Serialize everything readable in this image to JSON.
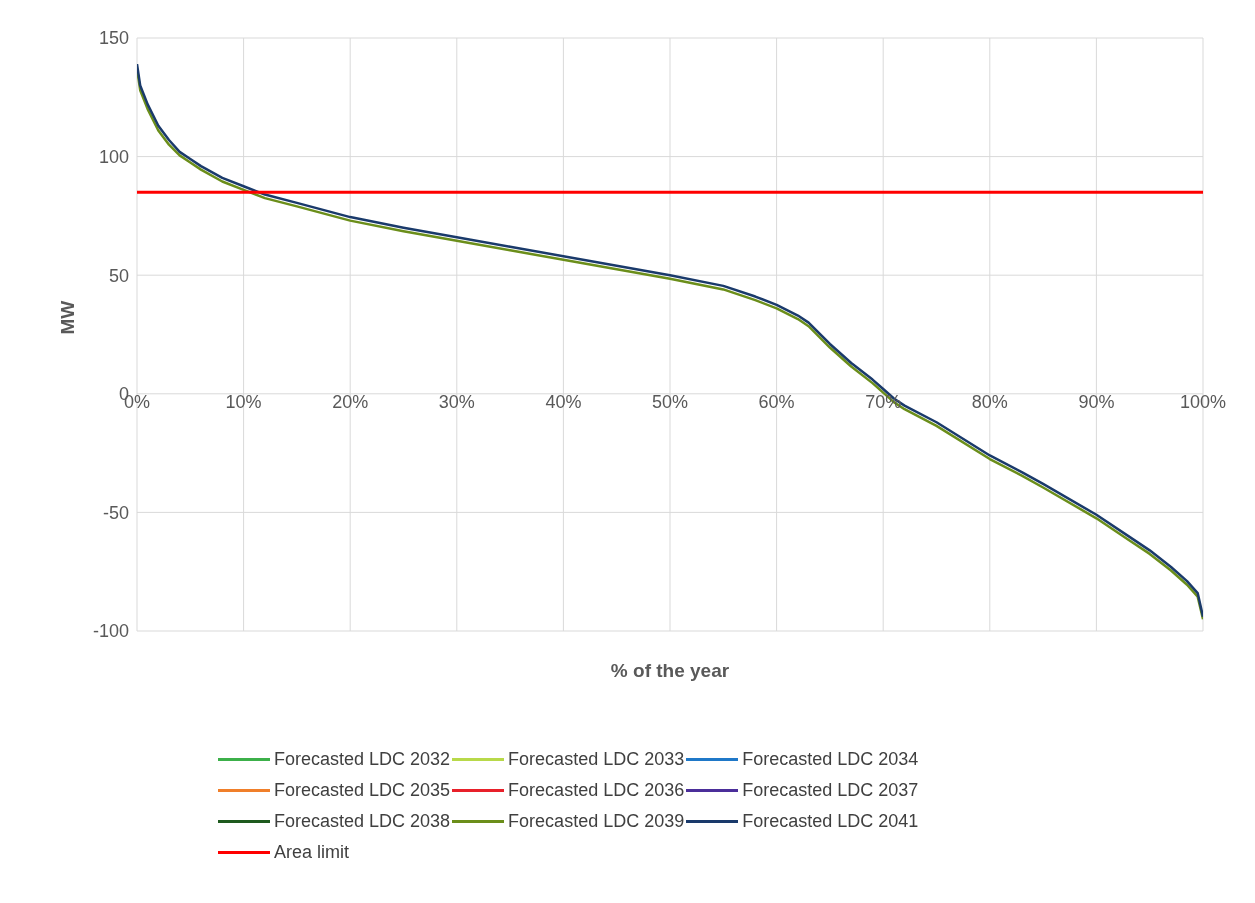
{
  "chart_data": {
    "type": "line",
    "xlabel": "% of the year",
    "ylabel": "MW",
    "x": [
      0,
      0.3,
      1,
      2,
      3,
      4,
      5,
      6,
      8,
      10,
      12,
      15,
      20,
      25,
      30,
      35,
      40,
      45,
      50,
      55,
      58,
      60,
      62,
      63,
      65,
      67,
      69,
      70,
      71,
      72,
      75,
      80,
      83,
      85,
      90,
      93,
      95,
      97,
      98.5,
      99.5,
      100
    ],
    "series": [
      {
        "name": "Forecasted LDC 2032",
        "color": "#3cb04a",
        "values": [
          null,
          null,
          null,
          null,
          null,
          null,
          null,
          null,
          null,
          null,
          null,
          null,
          null,
          null,
          null,
          null,
          null,
          null,
          null,
          null,
          null,
          null,
          null,
          null,
          null,
          null,
          null,
          null,
          null,
          null,
          null,
          null,
          null,
          null,
          null,
          null,
          null,
          null,
          null,
          null,
          null
        ]
      },
      {
        "name": "Forecasted LDC 2033",
        "color": "#b8d94a",
        "values": [
          null,
          null,
          null,
          null,
          null,
          null,
          null,
          null,
          null,
          null,
          null,
          null,
          null,
          null,
          null,
          null,
          null,
          null,
          null,
          null,
          null,
          null,
          null,
          null,
          null,
          null,
          null,
          null,
          null,
          null,
          null,
          null,
          null,
          null,
          null,
          null,
          null,
          null,
          null,
          null,
          null
        ]
      },
      {
        "name": "Forecasted LDC 2034",
        "color": "#1f78c8",
        "values": [
          null,
          null,
          null,
          null,
          null,
          null,
          null,
          null,
          null,
          null,
          null,
          null,
          null,
          null,
          null,
          null,
          null,
          null,
          null,
          null,
          null,
          null,
          null,
          null,
          null,
          null,
          null,
          null,
          null,
          null,
          null,
          null,
          null,
          null,
          null,
          null,
          null,
          null,
          null,
          null,
          null
        ]
      },
      {
        "name": "Forecasted LDC 2035",
        "color": "#f07f2a",
        "values": [
          null,
          null,
          null,
          null,
          null,
          null,
          null,
          null,
          null,
          null,
          null,
          null,
          null,
          null,
          null,
          null,
          null,
          null,
          null,
          null,
          null,
          null,
          null,
          null,
          null,
          null,
          null,
          null,
          null,
          null,
          null,
          null,
          null,
          null,
          null,
          null,
          null,
          null,
          null,
          null,
          null
        ]
      },
      {
        "name": "Forecasted LDC 2036",
        "color": "#e8202a",
        "values": [
          null,
          null,
          null,
          null,
          null,
          null,
          null,
          null,
          null,
          null,
          null,
          null,
          null,
          null,
          null,
          null,
          null,
          null,
          null,
          null,
          null,
          null,
          null,
          null,
          null,
          null,
          null,
          null,
          null,
          null,
          null,
          null,
          null,
          null,
          null,
          null,
          null,
          null,
          null,
          null,
          null
        ]
      },
      {
        "name": "Forecasted LDC 2037",
        "color": "#4b2e9a",
        "values": [
          null,
          null,
          null,
          null,
          null,
          null,
          null,
          null,
          null,
          null,
          null,
          null,
          null,
          null,
          null,
          null,
          null,
          null,
          null,
          null,
          null,
          null,
          null,
          null,
          null,
          null,
          null,
          null,
          null,
          null,
          null,
          null,
          null,
          null,
          null,
          null,
          null,
          null,
          null,
          null,
          null
        ]
      },
      {
        "name": "Forecasted LDC 2038",
        "color": "#1e5a1e",
        "values": [
          null,
          null,
          null,
          null,
          null,
          null,
          null,
          null,
          null,
          null,
          null,
          null,
          null,
          null,
          null,
          null,
          null,
          null,
          null,
          null,
          null,
          null,
          null,
          null,
          null,
          null,
          null,
          null,
          null,
          null,
          null,
          null,
          null,
          null,
          null,
          null,
          null,
          null,
          null,
          null,
          null
        ]
      },
      {
        "name": "Forecasted LDC 2039",
        "color": "#6b8e1a",
        "values": [
          137,
          128,
          120,
          111,
          105,
          100.5,
          97.5,
          94.5,
          89.5,
          86,
          82.5,
          79,
          73,
          68.5,
          64.5,
          60.5,
          56.5,
          52.5,
          48.5,
          44,
          39.5,
          36,
          31.5,
          28.5,
          19.5,
          11.5,
          4.5,
          0.5,
          -3.5,
          -6.5,
          -13.5,
          -27.5,
          -34.5,
          -39.5,
          -52.5,
          -61.5,
          -67.5,
          -74.5,
          -80.5,
          -85.5,
          -95
        ]
      },
      {
        "name": "Forecasted LDC 2041",
        "color": "#1a3a6b",
        "values": [
          139,
          130,
          122,
          113,
          107,
          102,
          99,
          96,
          91,
          87.5,
          84,
          80.5,
          74.5,
          70,
          66,
          62,
          58,
          54,
          50,
          45.5,
          41,
          37.5,
          33,
          30,
          21,
          13,
          6,
          2,
          -2,
          -5,
          -12,
          -26,
          -33,
          -38,
          -51,
          -60,
          -66,
          -73,
          -79,
          -84,
          -94
        ]
      }
    ],
    "ref_lines": [
      {
        "axis": "y",
        "value": 85,
        "label": "Area limit",
        "color": "#ff0000"
      }
    ],
    "xlim": [
      0,
      100
    ],
    "xticks": [
      {
        "value": 0,
        "label": "0%"
      },
      {
        "value": 10,
        "label": "10%"
      },
      {
        "value": 20,
        "label": "20%"
      },
      {
        "value": 30,
        "label": "30%"
      },
      {
        "value": 40,
        "label": "40%"
      },
      {
        "value": 50,
        "label": "50%"
      },
      {
        "value": 60,
        "label": "60%"
      },
      {
        "value": 70,
        "label": "70%"
      },
      {
        "value": 80,
        "label": "80%"
      },
      {
        "value": 90,
        "label": "90%"
      },
      {
        "value": 100,
        "label": "100%"
      }
    ],
    "ylim": [
      -100,
      150
    ],
    "yticks": [
      -100,
      -50,
      0,
      50,
      100,
      150
    ],
    "grid": true,
    "legend": "bottom",
    "marker": "none",
    "line_style": "solid"
  }
}
